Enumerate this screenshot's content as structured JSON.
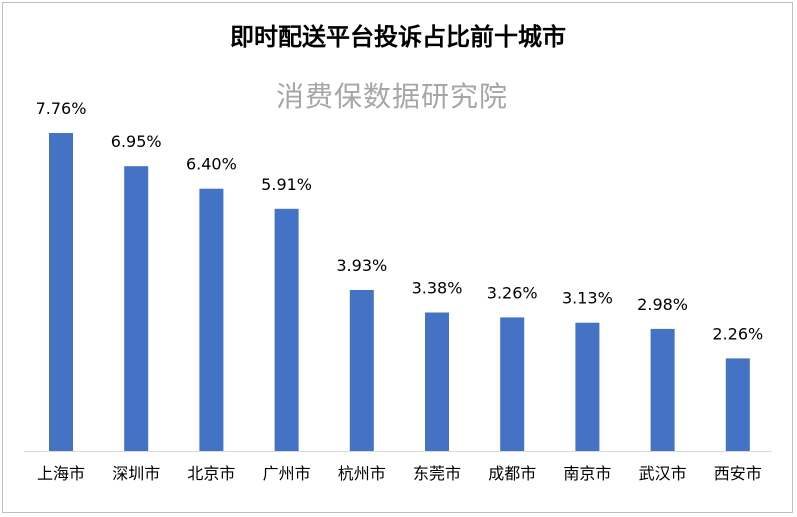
{
  "chart_data": {
    "type": "bar",
    "title": "即时配送平台投诉占比前十城市",
    "subtitle": "消费保数据研究院",
    "categories": [
      "上海市",
      "深圳市",
      "北京市",
      "广州市",
      "杭州市",
      "东莞市",
      "成都市",
      "南京市",
      "武汉市",
      "西安市"
    ],
    "values": [
      7.76,
      6.95,
      6.4,
      5.91,
      3.93,
      3.38,
      3.26,
      3.13,
      2.98,
      2.26
    ],
    "value_labels": [
      "7.76%",
      "6.95%",
      "6.40%",
      "5.91%",
      "3.93%",
      "3.38%",
      "3.26%",
      "3.13%",
      "2.98%",
      "2.26%"
    ],
    "ylim": [
      0,
      7.76
    ],
    "grid": false,
    "bar_color": "#4472c4",
    "axis_color": "#d9d9d9"
  }
}
